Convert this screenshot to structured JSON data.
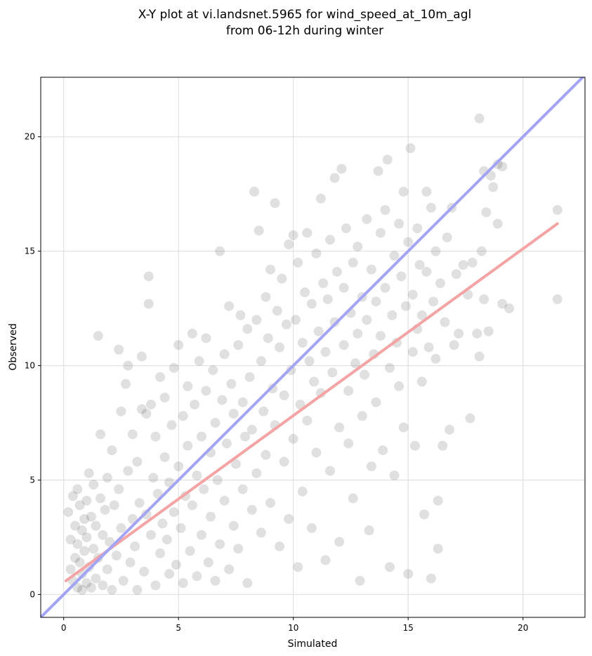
{
  "chart_data": {
    "type": "scatter",
    "title_line1": "X-Y plot at vi.landsnet.5965 for wind_speed_at_10m_agl",
    "title_line2": "from 06-12h during winter",
    "xlabel": "Simulated",
    "ylabel": "Observed",
    "xlim": [
      -1.0,
      22.7
    ],
    "ylim": [
      -1.0,
      22.6
    ],
    "xticks": [
      0,
      5,
      10,
      15,
      20
    ],
    "yticks": [
      0,
      5,
      10,
      15,
      20
    ],
    "grid": true,
    "point_color": "#000000",
    "series": [
      {
        "type": "scatter",
        "points": [
          [
            0.2,
            3.6
          ],
          [
            0.3,
            2.4
          ],
          [
            0.3,
            1.1
          ],
          [
            0.4,
            4.3
          ],
          [
            0.4,
            0.6
          ],
          [
            0.5,
            3.0
          ],
          [
            0.5,
            1.6
          ],
          [
            0.6,
            4.6
          ],
          [
            0.6,
            2.2
          ],
          [
            0.6,
            0.3
          ],
          [
            0.7,
            3.9
          ],
          [
            0.7,
            1.4
          ],
          [
            0.8,
            2.8
          ],
          [
            0.8,
            0.9
          ],
          [
            0.8,
            0.2
          ],
          [
            0.9,
            3.3
          ],
          [
            0.9,
            1.9
          ],
          [
            1.0,
            4.1
          ],
          [
            1.0,
            0.5
          ],
          [
            1.0,
            2.5
          ],
          [
            1.1,
            5.3
          ],
          [
            1.1,
            1.2
          ],
          [
            1.2,
            3.4
          ],
          [
            1.2,
            0.3
          ],
          [
            1.3,
            2.0
          ],
          [
            1.3,
            4.8
          ],
          [
            1.4,
            0.7
          ],
          [
            1.4,
            3.0
          ],
          [
            1.5,
            11.3
          ],
          [
            1.5,
            1.6
          ],
          [
            1.6,
            7.0
          ],
          [
            1.6,
            4.2
          ],
          [
            1.7,
            2.6
          ],
          [
            1.7,
            0.4
          ],
          [
            1.8,
            3.7
          ],
          [
            1.9,
            5.1
          ],
          [
            1.9,
            1.1
          ],
          [
            2.0,
            2.3
          ],
          [
            2.1,
            6.3
          ],
          [
            2.1,
            0.2
          ],
          [
            2.2,
            3.9
          ],
          [
            2.3,
            1.7
          ],
          [
            2.4,
            4.6
          ],
          [
            2.4,
            10.7
          ],
          [
            2.5,
            8.0
          ],
          [
            2.5,
            2.9
          ],
          [
            2.6,
            0.6
          ],
          [
            2.7,
            9.2
          ],
          [
            2.8,
            5.4
          ],
          [
            2.8,
            10.0
          ],
          [
            2.9,
            1.4
          ],
          [
            3.0,
            3.3
          ],
          [
            3.0,
            7.0
          ],
          [
            3.1,
            2.1
          ],
          [
            3.2,
            5.8
          ],
          [
            3.2,
            0.2
          ],
          [
            3.3,
            4.0
          ],
          [
            3.4,
            8.1
          ],
          [
            3.4,
            10.4
          ],
          [
            3.5,
            1.0
          ],
          [
            3.6,
            3.5
          ],
          [
            3.6,
            7.9
          ],
          [
            3.7,
            13.9
          ],
          [
            3.7,
            12.7
          ],
          [
            3.8,
            8.3
          ],
          [
            3.8,
            2.6
          ],
          [
            3.9,
            5.1
          ],
          [
            4.0,
            0.4
          ],
          [
            4.0,
            6.9
          ],
          [
            4.1,
            4.4
          ],
          [
            4.2,
            9.5
          ],
          [
            4.2,
            1.8
          ],
          [
            4.3,
            3.1
          ],
          [
            4.4,
            6.0
          ],
          [
            4.4,
            8.6
          ],
          [
            4.5,
            2.4
          ],
          [
            4.6,
            4.9
          ],
          [
            4.6,
            0.9
          ],
          [
            4.7,
            7.4
          ],
          [
            4.8,
            3.6
          ],
          [
            4.8,
            9.9
          ],
          [
            4.9,
            1.3
          ],
          [
            5.0,
            5.6
          ],
          [
            5.0,
            10.9
          ],
          [
            5.1,
            2.9
          ],
          [
            5.2,
            7.8
          ],
          [
            5.2,
            0.5
          ],
          [
            5.3,
            4.3
          ],
          [
            5.4,
            9.1
          ],
          [
            5.4,
            6.5
          ],
          [
            5.5,
            1.9
          ],
          [
            5.6,
            11.4
          ],
          [
            5.6,
            3.9
          ],
          [
            5.7,
            8.3
          ],
          [
            5.8,
            5.2
          ],
          [
            5.8,
            0.8
          ],
          [
            5.9,
            10.2
          ],
          [
            6.0,
            6.9
          ],
          [
            6.0,
            2.6
          ],
          [
            6.1,
            4.6
          ],
          [
            6.2,
            11.2
          ],
          [
            6.2,
            8.9
          ],
          [
            6.3,
            1.4
          ],
          [
            6.4,
            6.2
          ],
          [
            6.4,
            3.4
          ],
          [
            6.5,
            9.8
          ],
          [
            6.6,
            7.5
          ],
          [
            6.6,
            0.6
          ],
          [
            6.7,
            5.0
          ],
          [
            6.8,
            15.0
          ],
          [
            6.8,
            2.2
          ],
          [
            6.9,
            8.5
          ],
          [
            7.0,
            10.5
          ],
          [
            7.0,
            4.1
          ],
          [
            7.1,
            6.6
          ],
          [
            7.2,
            1.1
          ],
          [
            7.2,
            12.6
          ],
          [
            7.3,
            9.2
          ],
          [
            7.4,
            3.0
          ],
          [
            7.4,
            7.9
          ],
          [
            7.5,
            5.7
          ],
          [
            7.6,
            10.9
          ],
          [
            7.6,
            2.0
          ],
          [
            7.7,
            12.2
          ],
          [
            7.8,
            8.4
          ],
          [
            7.8,
            4.6
          ],
          [
            7.9,
            6.9
          ],
          [
            8.0,
            0.5
          ],
          [
            8.0,
            11.6
          ],
          [
            8.1,
            9.5
          ],
          [
            8.2,
            3.7
          ],
          [
            8.2,
            7.2
          ],
          [
            8.3,
            17.6
          ],
          [
            8.4,
            12.0
          ],
          [
            8.4,
            5.3
          ],
          [
            8.5,
            15.9
          ],
          [
            8.6,
            10.2
          ],
          [
            8.6,
            2.7
          ],
          [
            8.7,
            8.0
          ],
          [
            8.8,
            13.0
          ],
          [
            8.8,
            6.1
          ],
          [
            8.9,
            11.2
          ],
          [
            9.0,
            14.2
          ],
          [
            9.0,
            4.0
          ],
          [
            9.1,
            9.0
          ],
          [
            9.2,
            17.1
          ],
          [
            9.2,
            7.4
          ],
          [
            9.3,
            12.4
          ],
          [
            9.4,
            2.1
          ],
          [
            9.4,
            10.8
          ],
          [
            9.5,
            13.8
          ],
          [
            9.6,
            5.8
          ],
          [
            9.6,
            8.7
          ],
          [
            9.7,
            11.8
          ],
          [
            9.8,
            15.3
          ],
          [
            9.8,
            3.3
          ],
          [
            9.9,
            9.8
          ],
          [
            10.0,
            15.7
          ],
          [
            10.0,
            6.8
          ],
          [
            10.1,
            12.0
          ],
          [
            10.2,
            1.2
          ],
          [
            10.2,
            14.5
          ],
          [
            10.3,
            8.3
          ],
          [
            10.4,
            11.0
          ],
          [
            10.4,
            4.5
          ],
          [
            10.5,
            13.2
          ],
          [
            10.6,
            15.8
          ],
          [
            10.6,
            7.6
          ],
          [
            10.7,
            10.2
          ],
          [
            10.8,
            12.7
          ],
          [
            10.8,
            2.9
          ],
          [
            10.9,
            9.3
          ],
          [
            11.0,
            14.9
          ],
          [
            11.0,
            6.2
          ],
          [
            11.1,
            11.5
          ],
          [
            11.2,
            17.3
          ],
          [
            11.2,
            8.8
          ],
          [
            11.3,
            13.6
          ],
          [
            11.4,
            1.5
          ],
          [
            11.4,
            10.6
          ],
          [
            11.5,
            12.9
          ],
          [
            11.6,
            15.5
          ],
          [
            11.6,
            5.4
          ],
          [
            11.7,
            9.7
          ],
          [
            11.8,
            18.2
          ],
          [
            11.8,
            11.9
          ],
          [
            11.9,
            14.1
          ],
          [
            12.0,
            7.3
          ],
          [
            12.0,
            2.3
          ],
          [
            12.1,
            18.6
          ],
          [
            12.2,
            10.9
          ],
          [
            12.2,
            13.4
          ],
          [
            12.3,
            16.0
          ],
          [
            12.4,
            6.6
          ],
          [
            12.4,
            8.9
          ],
          [
            12.5,
            12.3
          ],
          [
            12.6,
            14.5
          ],
          [
            12.6,
            4.2
          ],
          [
            12.7,
            10.1
          ],
          [
            12.8,
            15.2
          ],
          [
            12.8,
            11.4
          ],
          [
            12.9,
            0.6
          ],
          [
            13.0,
            13.0
          ],
          [
            13.0,
            7.8
          ],
          [
            13.1,
            9.6
          ],
          [
            13.2,
            16.4
          ],
          [
            13.2,
            12.0
          ],
          [
            13.3,
            2.8
          ],
          [
            13.4,
            14.2
          ],
          [
            13.4,
            5.6
          ],
          [
            13.5,
            10.5
          ],
          [
            13.6,
            12.8
          ],
          [
            13.6,
            8.4
          ],
          [
            13.7,
            18.5
          ],
          [
            13.8,
            15.8
          ],
          [
            13.8,
            11.3
          ],
          [
            13.9,
            6.3
          ],
          [
            14.0,
            16.8
          ],
          [
            14.0,
            13.4
          ],
          [
            14.1,
            19.0
          ],
          [
            14.2,
            9.9
          ],
          [
            14.2,
            1.2
          ],
          [
            14.3,
            12.2
          ],
          [
            14.4,
            14.8
          ],
          [
            14.4,
            5.2
          ],
          [
            14.5,
            11.0
          ],
          [
            14.6,
            16.2
          ],
          [
            14.6,
            9.1
          ],
          [
            14.7,
            13.9
          ],
          [
            14.8,
            17.6
          ],
          [
            14.8,
            7.3
          ],
          [
            14.9,
            12.6
          ],
          [
            15.0,
            15.4
          ],
          [
            15.0,
            0.9
          ],
          [
            15.1,
            19.5
          ],
          [
            15.2,
            10.6
          ],
          [
            15.2,
            13.1
          ],
          [
            15.3,
            6.5
          ],
          [
            15.4,
            16.0
          ],
          [
            15.4,
            11.6
          ],
          [
            15.5,
            14.4
          ],
          [
            15.6,
            9.3
          ],
          [
            15.6,
            12.2
          ],
          [
            15.7,
            3.5
          ],
          [
            15.8,
            17.6
          ],
          [
            15.8,
            14.1
          ],
          [
            15.9,
            10.8
          ],
          [
            16.0,
            0.7
          ],
          [
            16.0,
            16.9
          ],
          [
            16.1,
            12.8
          ],
          [
            16.2,
            15.0
          ],
          [
            16.2,
            10.3
          ],
          [
            16.3,
            2.0
          ],
          [
            16.3,
            4.1
          ],
          [
            16.4,
            13.6
          ],
          [
            16.5,
            6.5
          ],
          [
            16.6,
            11.9
          ],
          [
            16.7,
            15.6
          ],
          [
            16.8,
            7.2
          ],
          [
            16.9,
            16.9
          ],
          [
            17.0,
            10.9
          ],
          [
            17.1,
            14.0
          ],
          [
            17.2,
            11.4
          ],
          [
            17.4,
            14.4
          ],
          [
            17.6,
            13.1
          ],
          [
            17.7,
            7.7
          ],
          [
            17.8,
            14.5
          ],
          [
            18.0,
            11.4
          ],
          [
            18.1,
            20.8
          ],
          [
            18.1,
            10.4
          ],
          [
            18.2,
            15.0
          ],
          [
            18.3,
            18.5
          ],
          [
            18.3,
            12.9
          ],
          [
            18.4,
            16.7
          ],
          [
            18.5,
            11.5
          ],
          [
            18.6,
            18.3
          ],
          [
            18.7,
            17.8
          ],
          [
            18.9,
            18.8
          ],
          [
            18.9,
            16.2
          ],
          [
            19.1,
            18.7
          ],
          [
            19.1,
            12.7
          ],
          [
            19.4,
            12.5
          ],
          [
            21.5,
            16.8
          ],
          [
            21.5,
            12.9
          ]
        ]
      },
      {
        "type": "line",
        "color": "#f4a4a4",
        "x": [
          0.1,
          21.5
        ],
        "y": [
          0.6,
          16.2
        ]
      },
      {
        "type": "line",
        "color": "#a4a4f4",
        "x": [
          -1.0,
          22.7
        ],
        "y": [
          -1.0,
          22.7
        ]
      }
    ]
  }
}
